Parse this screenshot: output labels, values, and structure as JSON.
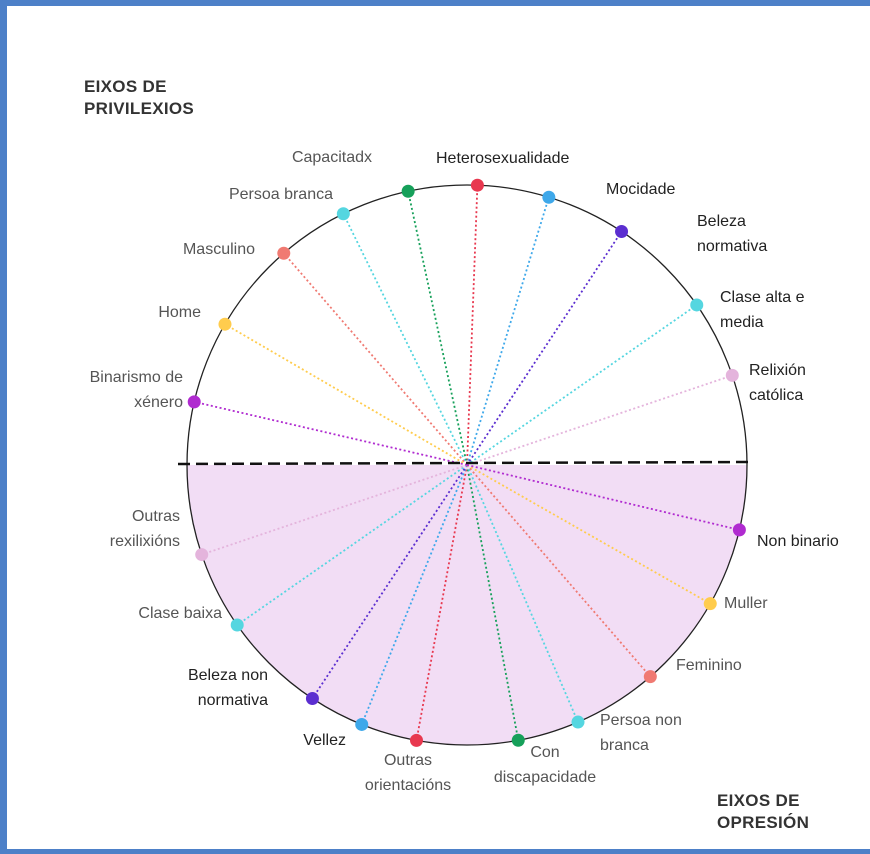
{
  "headings": {
    "privilege": [
      "EIXOS DE",
      "PRIVILEXIOS"
    ],
    "oppression": [
      "EIXOS DE",
      "OPRESIÓN"
    ]
  },
  "colors": {
    "frame": "#4d80c8",
    "oppression_fill": "#f2ddf5",
    "circle": "#222222",
    "divider": "#111111"
  },
  "axes": [
    {
      "top": [
        "Heterosexualidade"
      ],
      "top_style": "dark",
      "bottom": [
        "Outras",
        "orientacións"
      ],
      "bottom_style": "gray",
      "color": "#e8384f"
    },
    {
      "top": [
        "Capacitadx"
      ],
      "top_style": "gray",
      "bottom": [
        "Con",
        "discapacidade"
      ],
      "bottom_style": "gray",
      "color": "#16a05a"
    },
    {
      "top": [
        "Mocidade"
      ],
      "top_style": "dark",
      "bottom": [
        "Vellez"
      ],
      "bottom_style": "dark",
      "color": "#3ea8ea"
    },
    {
      "top": [
        "Persoa branca"
      ],
      "top_style": "gray",
      "bottom": [
        "Persoa non",
        "branca"
      ],
      "bottom_style": "gray",
      "color": "#55d6e0"
    },
    {
      "top": [
        "Beleza",
        "normativa"
      ],
      "top_style": "dark",
      "bottom": [
        "Beleza non",
        "normativa"
      ],
      "bottom_style": "dark",
      "color": "#5b2ed0"
    },
    {
      "top": [
        "Masculino"
      ],
      "top_style": "gray",
      "bottom": [
        "Feminino"
      ],
      "bottom_style": "gray",
      "color": "#f07a72"
    },
    {
      "top": [
        "Clase alta e",
        "media"
      ],
      "top_style": "dark",
      "bottom": [
        "Clase baixa"
      ],
      "bottom_style": "gray",
      "color": "#55d6e0"
    },
    {
      "top": [
        "Home"
      ],
      "top_style": "gray",
      "bottom": [
        "Muller"
      ],
      "bottom_style": "gray",
      "color": "#ffcc4d"
    },
    {
      "top": [
        "Relixión",
        "católica"
      ],
      "top_style": "dark",
      "bottom": [
        "Outras",
        "rexilixións"
      ],
      "bottom_style": "gray",
      "color": "#e4b4dc"
    },
    {
      "top": [
        "Binarismo de",
        "xénero"
      ],
      "top_style": "gray",
      "bottom": [
        "Non binario"
      ],
      "bottom_style": "dark",
      "color": "#b02bd0"
    }
  ]
}
